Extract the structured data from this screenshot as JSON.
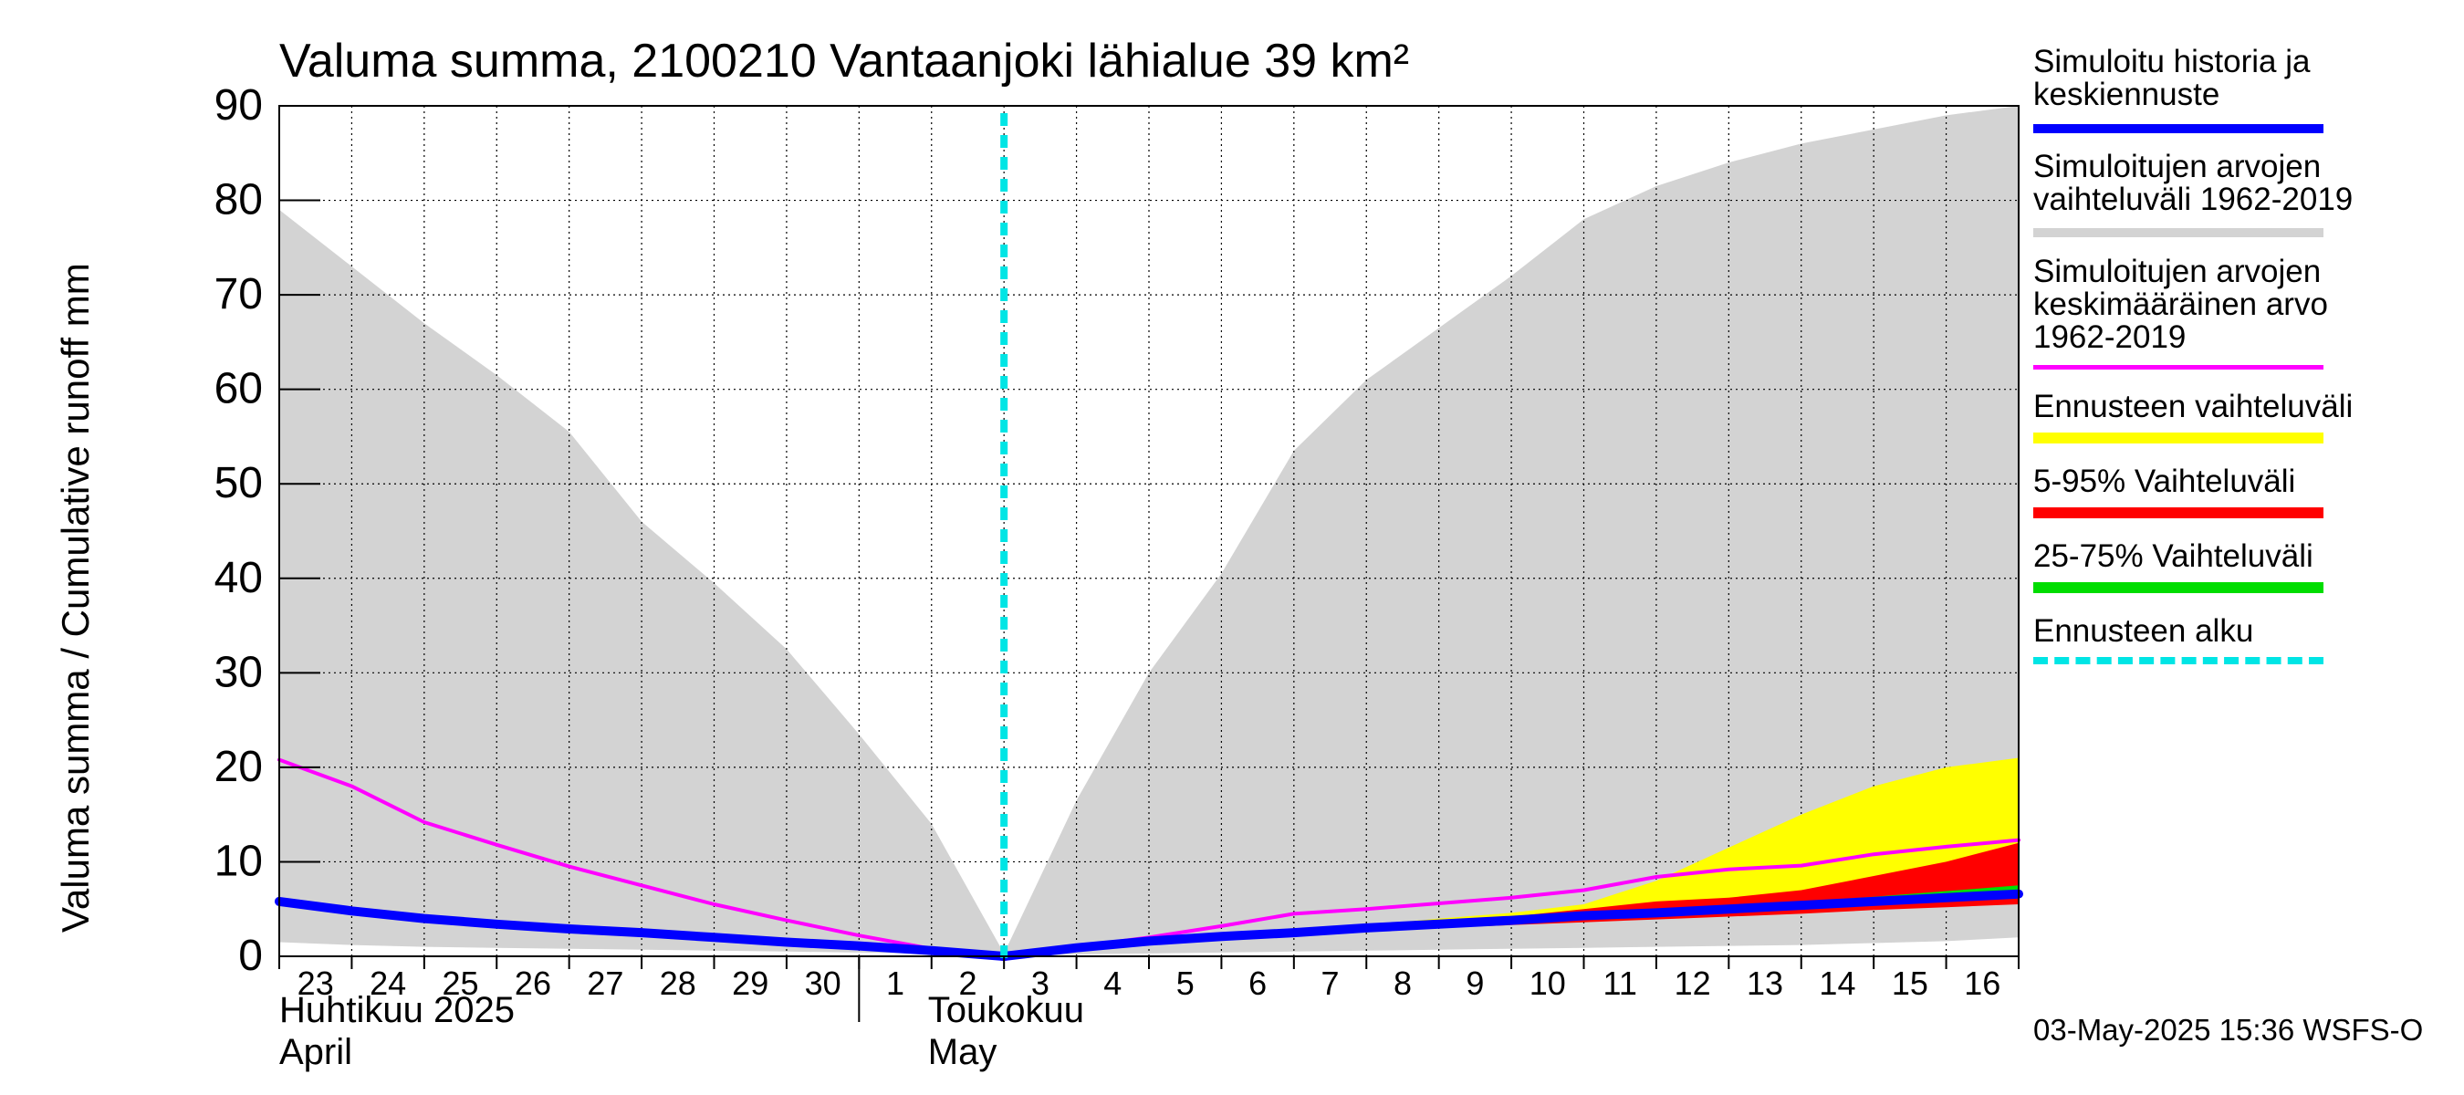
{
  "chart_data": {
    "type": "area",
    "title": "Valuma summa, 2100210 Vantaanjoki lähialue 39 km²",
    "ylabel": "Valuma summa / Cumulative runoff     mm",
    "ylim": [
      0,
      90
    ],
    "y_ticks": [
      "0",
      "10",
      "20",
      "30",
      "40",
      "50",
      "60",
      "70",
      "80",
      "90"
    ],
    "x_days": [
      "23",
      "24",
      "25",
      "26",
      "27",
      "28",
      "29",
      "30",
      "1",
      "2",
      "3",
      "4",
      "5",
      "6",
      "7",
      "8",
      "9",
      "10",
      "11",
      "12",
      "13",
      "14",
      "15",
      "16"
    ],
    "month_labels": [
      {
        "fi": "Huhtikuu  2025",
        "en": "April"
      },
      {
        "fi": "Toukokuu",
        "en": "May"
      }
    ],
    "forecast_start_day_index": 10,
    "x": [
      0,
      1,
      2,
      3,
      4,
      5,
      6,
      7,
      8,
      9,
      10,
      11,
      12,
      13,
      14,
      15,
      16,
      17,
      18,
      19,
      20,
      21,
      22,
      23,
      24
    ],
    "series": [
      {
        "name": "Simuloitujen arvojen vaihteluväli 1962-2019 (max)",
        "color": "#d3d3d3",
        "values": [
          79,
          73,
          67,
          61.5,
          55.5,
          46,
          39.5,
          32.5,
          23.5,
          14,
          0.3,
          16.5,
          30,
          40.5,
          53.5,
          61,
          66.5,
          72,
          78,
          81.5,
          84,
          86,
          87.5,
          89,
          90
        ]
      },
      {
        "name": "Simuloitujen arvojen vaihteluväli 1962-2019 (min)",
        "color": "#d3d3d3",
        "values": [
          1.5,
          1.2,
          1.0,
          0.9,
          0.8,
          0.7,
          0.6,
          0.5,
          0.4,
          0.3,
          0.0,
          0.2,
          0.3,
          0.4,
          0.5,
          0.6,
          0.7,
          0.8,
          0.9,
          1.0,
          1.1,
          1.2,
          1.4,
          1.6,
          2.0
        ]
      },
      {
        "name": "Simuloitujen arvojen keskimääräinen arvo 1962-2019",
        "color": "#ff00ff",
        "values": [
          20.8,
          18,
          14.2,
          11.8,
          9.5,
          7.5,
          5.5,
          3.8,
          2.2,
          0.8,
          -0.3,
          1.0,
          2.0,
          3.2,
          4.5,
          5.0,
          5.6,
          6.2,
          7.0,
          8.4,
          9.2,
          9.6,
          10.8,
          11.6,
          12.3
        ]
      },
      {
        "name": "Simuloitu historia ja keskiennuste",
        "color": "#0000ff",
        "values": [
          5.8,
          4.8,
          4.0,
          3.4,
          2.9,
          2.5,
          2.0,
          1.5,
          1.1,
          0.6,
          0.0,
          0.9,
          1.6,
          2.1,
          2.5,
          3.0,
          3.4,
          3.8,
          4.3,
          4.6,
          5.0,
          5.4,
          5.8,
          6.2,
          6.6
        ]
      },
      {
        "name": "Ennusteen vaihteluväli (max)",
        "color": "#ffff00",
        "values": [
          null,
          null,
          null,
          null,
          null,
          null,
          null,
          null,
          null,
          null,
          0,
          1.0,
          1.8,
          2.4,
          2.8,
          3.3,
          4.0,
          4.6,
          5.5,
          8.0,
          11.5,
          15.0,
          18.0,
          20.0,
          21.0
        ]
      },
      {
        "name": "5-95% Vaihteluväli (max)",
        "color": "#ff0000",
        "values": [
          null,
          null,
          null,
          null,
          null,
          null,
          null,
          null,
          null,
          null,
          0,
          0.9,
          1.6,
          2.2,
          2.6,
          3.1,
          3.6,
          4.2,
          5.0,
          5.8,
          6.2,
          7.0,
          8.5,
          10.0,
          12.0
        ]
      },
      {
        "name": "5-95% Vaihteluväli (min)",
        "color": "#ff0000",
        "values": [
          null,
          null,
          null,
          null,
          null,
          null,
          null,
          null,
          null,
          null,
          0,
          0.7,
          1.3,
          1.8,
          2.2,
          2.6,
          3.0,
          3.3,
          3.6,
          3.9,
          4.2,
          4.5,
          4.9,
          5.2,
          5.5
        ]
      },
      {
        "name": "25-75% Vaihteluväli (max)",
        "color": "#00dd00",
        "values": [
          null,
          null,
          null,
          null,
          null,
          null,
          null,
          null,
          null,
          null,
          0,
          0.9,
          1.6,
          2.2,
          2.6,
          3.1,
          3.5,
          4.0,
          4.5,
          4.9,
          5.3,
          5.8,
          6.3,
          6.9,
          7.5
        ]
      }
    ]
  },
  "legend": {
    "items": [
      {
        "label": "Simuloitu historia ja\nkeskiennuste",
        "color": "#0000ff"
      },
      {
        "label": "Simuloitujen arvojen\nvaihteluväli 1962-2019",
        "color": "#d3d3d3"
      },
      {
        "label": "Simuloitujen arvojen\nkeskimääräinen arvo\n   1962-2019",
        "color": "#ff00ff"
      },
      {
        "label": "Ennusteen vaihteluväli",
        "color": "#ffff00"
      },
      {
        "label": "5-95% Vaihteluväli",
        "color": "#ff0000"
      },
      {
        "label": "25-75% Vaihteluväli",
        "color": "#00dd00"
      },
      {
        "label": "Ennusteen alku",
        "color": "#00e5e5"
      }
    ]
  },
  "timestamp": "03-May-2025 15:36 WSFS-O"
}
